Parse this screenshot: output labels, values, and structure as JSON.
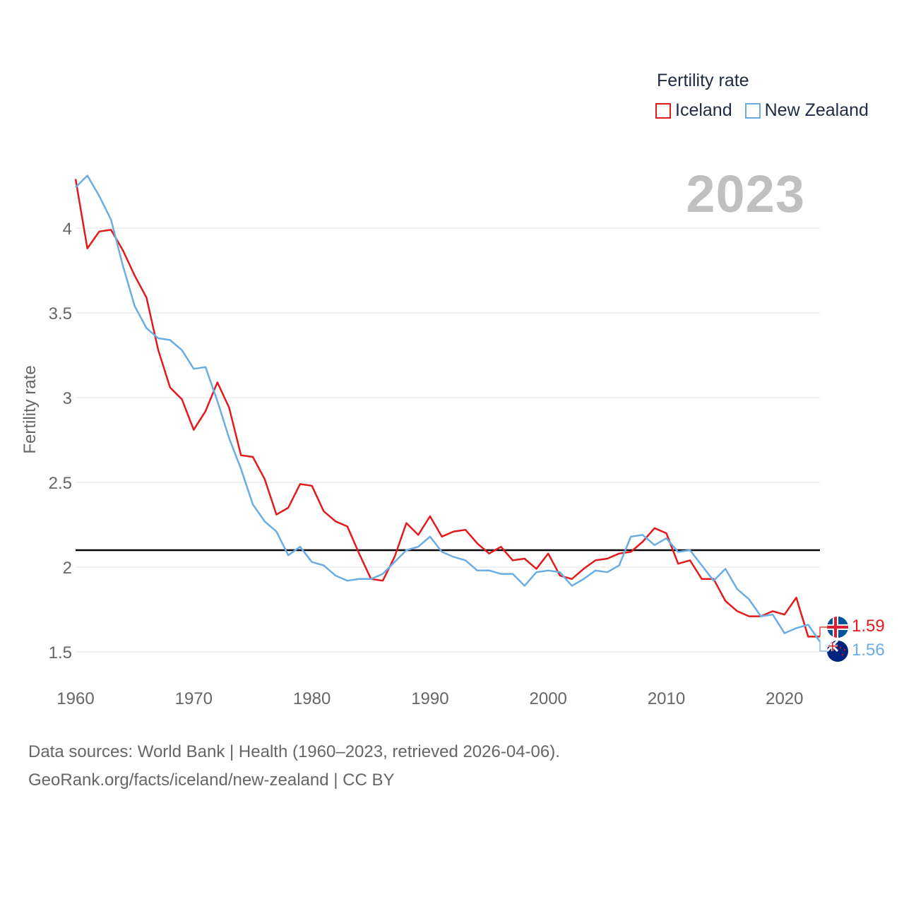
{
  "chart_data": {
    "type": "line",
    "year_label": "2023",
    "legend_title": "Fertility rate",
    "ylabel": "Fertility rate",
    "xlabel": "",
    "xlim": [
      1960,
      2023
    ],
    "ylim": [
      1.42,
      4.35
    ],
    "yticks": [
      1.5,
      2,
      2.5,
      3,
      3.5,
      4
    ],
    "ytick_labels": [
      "1.5",
      "2",
      "2.5",
      "3",
      "3.5",
      "4"
    ],
    "xticks": [
      1960,
      1970,
      1980,
      1990,
      2000,
      2010,
      2020
    ],
    "xtick_labels": [
      "1960",
      "1970",
      "1980",
      "1990",
      "2000",
      "2010",
      "2020"
    ],
    "reference_line": {
      "value": 2.1,
      "color": "#000000"
    },
    "x": [
      1960,
      1961,
      1962,
      1963,
      1964,
      1965,
      1966,
      1967,
      1968,
      1969,
      1970,
      1971,
      1972,
      1973,
      1974,
      1975,
      1976,
      1977,
      1978,
      1979,
      1980,
      1981,
      1982,
      1983,
      1984,
      1985,
      1986,
      1987,
      1988,
      1989,
      1990,
      1991,
      1992,
      1993,
      1994,
      1995,
      1996,
      1997,
      1998,
      1999,
      2000,
      2001,
      2002,
      2003,
      2004,
      2005,
      2006,
      2007,
      2008,
      2009,
      2010,
      2011,
      2012,
      2013,
      2014,
      2015,
      2016,
      2017,
      2018,
      2019,
      2020,
      2021,
      2022,
      2023
    ],
    "series": [
      {
        "name": "Iceland",
        "color": "#e31a1c",
        "end_label": "1.59",
        "values": [
          4.29,
          3.88,
          3.98,
          3.99,
          3.87,
          3.72,
          3.59,
          3.28,
          3.06,
          2.99,
          2.81,
          2.92,
          3.09,
          2.94,
          2.66,
          2.65,
          2.52,
          2.31,
          2.35,
          2.49,
          2.48,
          2.33,
          2.27,
          2.24,
          2.08,
          1.93,
          1.92,
          2.06,
          2.26,
          2.19,
          2.3,
          2.18,
          2.21,
          2.22,
          2.14,
          2.08,
          2.12,
          2.04,
          2.05,
          1.99,
          2.08,
          1.95,
          1.93,
          1.99,
          2.04,
          2.05,
          2.08,
          2.09,
          2.15,
          2.23,
          2.2,
          2.02,
          2.04,
          1.93,
          1.93,
          1.8,
          1.74,
          1.71,
          1.71,
          1.74,
          1.72,
          1.82,
          1.59,
          1.59
        ]
      },
      {
        "name": "New Zealand",
        "color": "#6aade4",
        "end_label": "1.56",
        "values": [
          4.24,
          4.31,
          4.19,
          4.05,
          3.78,
          3.54,
          3.41,
          3.35,
          3.34,
          3.28,
          3.17,
          3.18,
          2.98,
          2.76,
          2.58,
          2.37,
          2.27,
          2.21,
          2.07,
          2.12,
          2.03,
          2.01,
          1.95,
          1.92,
          1.93,
          1.93,
          1.96,
          2.03,
          2.1,
          2.12,
          2.18,
          2.09,
          2.06,
          2.04,
          1.98,
          1.98,
          1.96,
          1.96,
          1.89,
          1.97,
          1.98,
          1.97,
          1.89,
          1.93,
          1.98,
          1.97,
          2.01,
          2.18,
          2.19,
          2.13,
          2.17,
          2.09,
          2.1,
          2.01,
          1.92,
          1.99,
          1.87,
          1.81,
          1.71,
          1.72,
          1.61,
          1.64,
          1.66,
          1.56
        ]
      }
    ]
  },
  "footer": {
    "line1": "Data sources: World Bank | Health (1960–2023, retrieved 2026-04-06).",
    "line2": "GeoRank.org/facts/iceland/new-zealand | CC BY"
  },
  "icons": {
    "iceland": "iceland-flag-icon",
    "new_zealand": "new-zealand-flag-icon"
  }
}
